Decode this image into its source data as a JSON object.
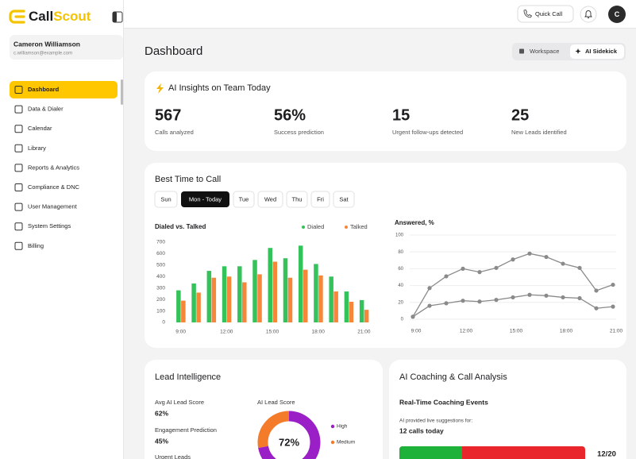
{
  "brand": {
    "part1": "Call",
    "part2": "Scout"
  },
  "topbar": {
    "quick_call": "Quick Call",
    "avatar": "C"
  },
  "user": {
    "name": "Cameron Williamson",
    "email": "c.williamson@example.com"
  },
  "nav": [
    "Dashboard",
    "Data & Dialer",
    "Calendar",
    "Library",
    "Reports & Analytics",
    "Compliance & DNC",
    "User Management",
    "System Settings",
    "Billing"
  ],
  "page_title": "Dashboard",
  "view_toggle": [
    "Workspace",
    "AI Sidekick"
  ],
  "insights": {
    "title": "AI Insights on Team Today",
    "stats": [
      {
        "value": "567",
        "label": "Calls analyzed"
      },
      {
        "value": "56%",
        "label": "Success prediction"
      },
      {
        "value": "15",
        "label": "Urgent follow-ups detected"
      },
      {
        "value": "25",
        "label": "New Leads identified"
      }
    ]
  },
  "best_time": {
    "title": "Best Time to Call",
    "days": [
      "Sun",
      "Mon - Today",
      "Tue",
      "Wed",
      "Thu",
      "Fri",
      "Sat"
    ]
  },
  "chart_data": [
    {
      "type": "bar",
      "title": "Dialed vs. Talked",
      "categories": [
        "9:00",
        null,
        null,
        "12:00",
        null,
        null,
        "15:00",
        null,
        null,
        "18:00",
        null,
        null,
        "21:00"
      ],
      "series": [
        {
          "name": "Dialed",
          "color": "#34c35a",
          "values": [
            280,
            340,
            450,
            490,
            490,
            545,
            650,
            560,
            670,
            510,
            400,
            270,
            195
          ]
        },
        {
          "name": "Talked",
          "color": "#f5863a",
          "values": [
            190,
            260,
            390,
            400,
            350,
            420,
            530,
            390,
            460,
            410,
            270,
            180,
            110
          ]
        }
      ],
      "ylim": [
        0,
        700
      ],
      "yticks": [
        0,
        100,
        200,
        300,
        400,
        500,
        600,
        700
      ],
      "grid": false
    },
    {
      "type": "line",
      "title": "Answered, %",
      "categories": [
        "9:00",
        null,
        null,
        "12:00",
        null,
        null,
        "15:00",
        null,
        null,
        "18:00",
        null,
        null,
        "21:00"
      ],
      "series": [
        {
          "color": "#8a8a8a",
          "values": [
            3,
            37,
            51,
            60,
            56,
            61,
            71,
            78,
            74,
            66,
            61,
            34,
            41
          ]
        },
        {
          "color": "#8a8a8a",
          "values": [
            3,
            16,
            19,
            22,
            21,
            23,
            26,
            29,
            28,
            26,
            25,
            13,
            15
          ]
        }
      ],
      "ylim": [
        0,
        100
      ],
      "yticks": [
        0,
        20,
        40,
        60,
        80,
        100
      ],
      "grid": true
    },
    {
      "type": "donut",
      "title": "AI Lead Score",
      "value": 72,
      "value_label": "72%",
      "legend": [
        {
          "name": "High",
          "color": "#9a1fc6"
        },
        {
          "name": "Medium",
          "color": "#f47b2a"
        }
      ]
    }
  ],
  "lead_intelligence": {
    "title": "Lead Intelligence",
    "metrics": [
      {
        "label": "Avg AI Lead Score",
        "value": "62%"
      },
      {
        "label": "Engagement Prediction",
        "value": "45%"
      },
      {
        "label": "Urgent Leads"
      }
    ]
  },
  "coaching": {
    "title": "AI Coaching & Call Analysis",
    "subtitle": "Real-Time Coaching Events",
    "note": "AI provided live suggestions for:",
    "calls": "12 calls today",
    "progress": "12/20"
  }
}
